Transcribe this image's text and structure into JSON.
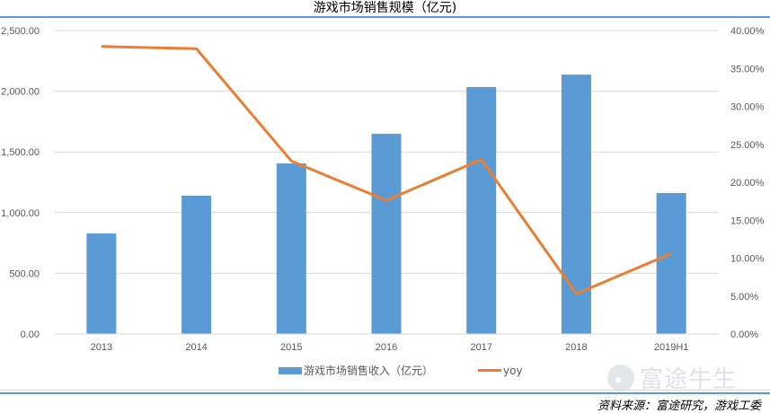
{
  "title": "游戏市场销售规模（亿元)",
  "legend": {
    "bar_label": "游戏市场销售收入（亿元）",
    "line_label": "yoy"
  },
  "watermark": {
    "text": "富途牛生",
    "icon": "futu-logo-icon"
  },
  "source": "资料来源：富途研究，游戏工委",
  "colors": {
    "bar": "#5b9bd5",
    "line": "#ed7d31",
    "grid": "#d9d9d9",
    "rule": "#5b9bd5"
  },
  "chart_data": {
    "type": "bar+line",
    "title": "游戏市场销售规模（亿元)",
    "categories": [
      "2013",
      "2014",
      "2015",
      "2016",
      "2017",
      "2018",
      "2019H1"
    ],
    "series": [
      {
        "name": "游戏市场销售收入（亿元）",
        "type": "bar",
        "axis": "left",
        "values": [
          828,
          1139,
          1405,
          1649,
          2034,
          2137,
          1161
        ]
      },
      {
        "name": "yoy",
        "type": "line",
        "axis": "right",
        "values": [
          0.379,
          0.376,
          0.228,
          0.176,
          0.23,
          0.053,
          0.106
        ]
      }
    ],
    "left_axis": {
      "ylim": [
        0,
        2500
      ],
      "ticks": [
        "0.00",
        "500.00",
        "1,000.00",
        "1,500.00",
        "2,000.00",
        "2,500.00"
      ]
    },
    "right_axis": {
      "ylim": [
        0,
        0.4
      ],
      "ticks": [
        "0.00%",
        "5.00%",
        "10.00%",
        "15.00%",
        "20.00%",
        "25.00%",
        "30.00%",
        "35.00%",
        "40.00%"
      ]
    },
    "xlabel": "",
    "ylabel": "",
    "grid": true,
    "legend_position": "bottom"
  }
}
